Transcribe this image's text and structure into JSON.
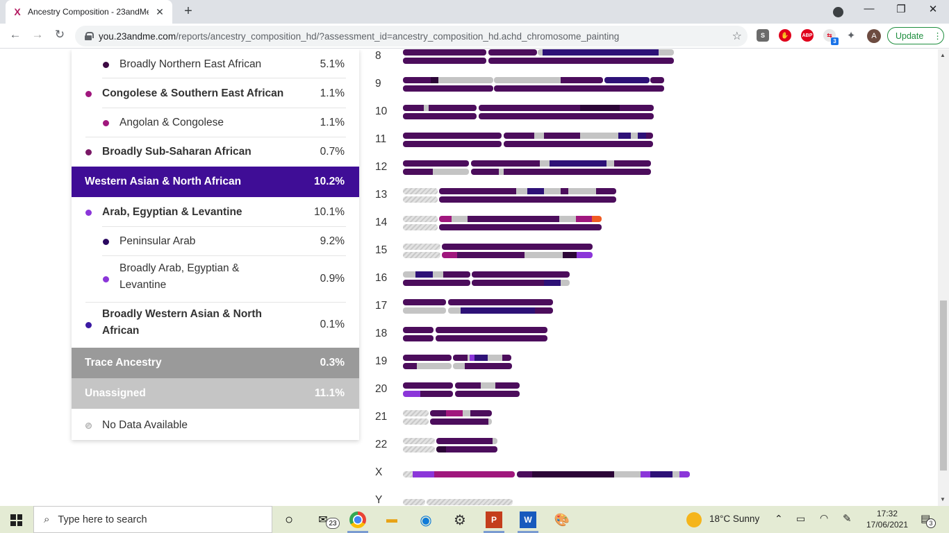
{
  "browser": {
    "tab_title": "Ancestry Composition - 23andMe",
    "tab_close": "✕",
    "new_tab": "+",
    "url_host": "you.23andme.com",
    "url_path": "/reports/ancestry_composition_hd/?assessment_id=ancestry_composition_hd.achd_chromosome_painting",
    "update_label": "Update",
    "avatar_letter": "A",
    "ext_badge": "3",
    "abp_label": "ABP"
  },
  "ancestry": {
    "rows": [
      {
        "label": "Broadly Northern East African",
        "pct": "5.1%",
        "color": "#3d0a43"
      },
      {
        "label": "Congolese & Southern East African",
        "pct": "1.1%",
        "color": "#a0177d"
      },
      {
        "label": "Angolan & Congolese",
        "pct": "1.1%",
        "color": "#a0177d"
      },
      {
        "label": "Broadly Sub-Saharan African",
        "pct": "0.7%",
        "color": "#7a1866"
      },
      {
        "label": "Western Asian & North African",
        "pct": "10.2%",
        "color": "#3f0d96"
      },
      {
        "label": "Arab, Egyptian & Levantine",
        "pct": "10.1%",
        "color": "#8b36d9"
      },
      {
        "label": "Peninsular Arab",
        "pct": "9.2%",
        "color": "#2a0860"
      },
      {
        "label": "Broadly Arab, Egyptian &",
        "label2": "Levantine",
        "pct": "0.9%",
        "color": "#8b36d9"
      },
      {
        "label": "Broadly Western Asian & North",
        "label2": "African",
        "pct": "0.1%",
        "color": "#3b1aa3"
      },
      {
        "label": "Trace Ancestry",
        "pct": "0.3%",
        "color": "#9a9a9a"
      },
      {
        "label": "Unassigned",
        "pct": "11.1%",
        "color": "#c5c5c5"
      },
      {
        "label": "No Data Available",
        "pct": "",
        "color": "#cccccc"
      }
    ]
  },
  "chromosomes": {
    "labels": [
      "8",
      "9",
      "10",
      "11",
      "12",
      "13",
      "14",
      "15",
      "16",
      "17",
      "18",
      "19",
      "20",
      "21",
      "22",
      "X",
      "Y"
    ]
  },
  "taskbar": {
    "search_placeholder": "Type here to search",
    "mail_badge": "23",
    "weather": "18°C  Sunny",
    "time": "17:32",
    "date": "17/06/2021",
    "notif_count": "3"
  },
  "colors": {
    "dark": "#4c0d5c",
    "navy": "#2e1177",
    "gray": "#c4c4c4",
    "magenta": "#a0177d",
    "violet": "#8b36d9",
    "orange": "#f05a22"
  }
}
